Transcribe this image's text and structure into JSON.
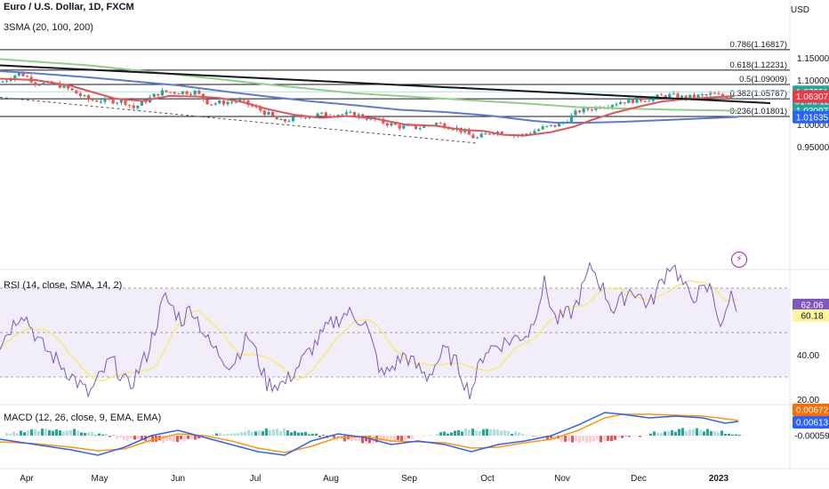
{
  "header": {
    "title": "Euro / U.S. Dollar, 1D, FXCM",
    "indicator": "3SMA (20, 100, 200)"
  },
  "price_axis": {
    "currency": "USD",
    "ticks": [
      "1.15000",
      "1.10000",
      "1.05000",
      "1.00000",
      "0.95000"
    ]
  },
  "fib_levels": [
    {
      "label": "0.786(1.16817)",
      "value": 1.16817
    },
    {
      "label": "0.618(1.12231)",
      "value": 1.12231
    },
    {
      "label": "0.5(1.09009)",
      "value": 1.09009
    },
    {
      "label": "0.382(1.05787)",
      "value": 1.05787
    },
    {
      "label": "0.236(1.01801)",
      "value": 1.01801
    }
  ],
  "price_badges": [
    {
      "value": "1.07351",
      "sub": "01:06:12",
      "color": "#26a69a",
      "price": 1.0735
    },
    {
      "value": "1.06307",
      "color": "#f23645",
      "price": 1.0631
    },
    {
      "value": "1.03097",
      "color": "#26a69a",
      "price": 1.031
    },
    {
      "value": "1.01635",
      "color": "#2962ff",
      "price": 1.0164
    }
  ],
  "rsi": {
    "label": "RSI (14, close, SMA, 14, 2)",
    "ticks": [
      "40.00",
      "20.00"
    ],
    "badges": [
      {
        "value": "62.06",
        "color": "#7e57c2",
        "text_color": "#ffffff"
      },
      {
        "value": "60.18",
        "color": "#fff59d",
        "text_color": "#131722"
      }
    ]
  },
  "macd": {
    "label": "MACD (12, 26, close, 9, EMA, EMA)",
    "badges": [
      {
        "value": "0.00672",
        "color": "#ff6d00"
      },
      {
        "value": "0.00613",
        "color": "#2962ff"
      },
      {
        "value": "-0.00059",
        "color": "#ffffff"
      }
    ]
  },
  "time_axis": [
    "Apr",
    "May",
    "Jun",
    "Jul",
    "Aug",
    "Sep",
    "Oct",
    "Nov",
    "Dec",
    "2023"
  ],
  "flash_icon": "lightning-icon",
  "chart_data": {
    "type": "candlestick",
    "close_series_approx": {
      "x": [
        "Apr",
        "May",
        "Jun",
        "Jul",
        "Aug",
        "Sep",
        "Oct",
        "Nov",
        "Dec",
        "2023"
      ],
      "values": [
        1.105,
        1.052,
        1.073,
        1.025,
        1.021,
        1.0,
        0.975,
        1.03,
        1.061,
        1.069
      ]
    },
    "ylim": [
      0.94,
      1.17
    ],
    "sma_colors": {
      "sma20": "#f23645",
      "sma100": "#5b7bd5",
      "sma200": "#8bc34a"
    }
  }
}
